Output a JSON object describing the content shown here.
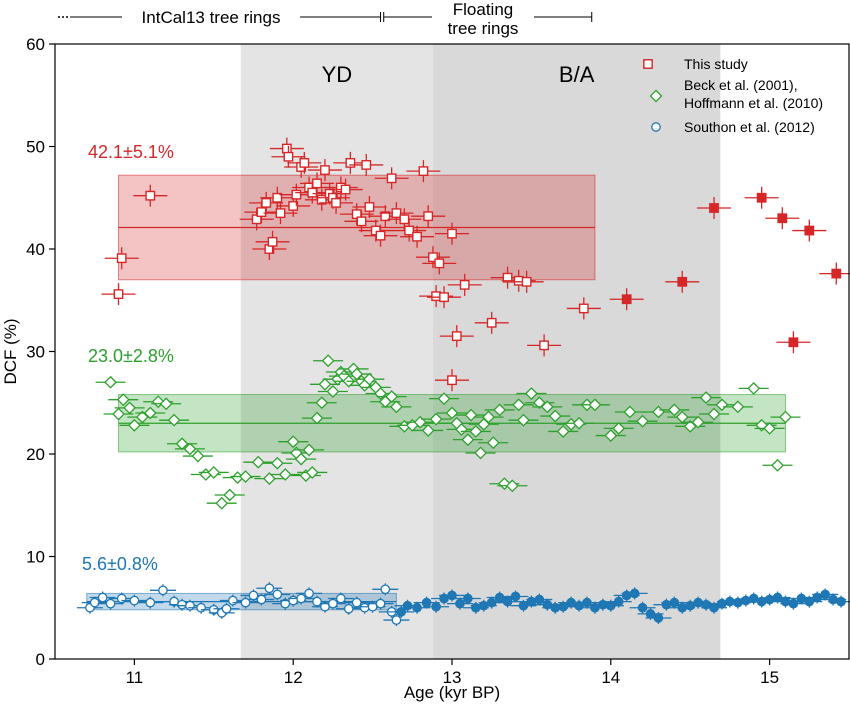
{
  "chart_data": {
    "type": "scatter",
    "xlabel": "Age (kyr BP)",
    "ylabel": "DCF (%)",
    "xlim": [
      10.5,
      15.5
    ],
    "ylim": [
      0,
      60
    ],
    "xticks": [
      11,
      12,
      13,
      14,
      15
    ],
    "yticks": [
      0,
      10,
      20,
      30,
      40,
      50,
      60
    ],
    "grid": false,
    "legend_position": "top-right",
    "shaded_regions": [
      {
        "label": "YD",
        "x": [
          11.67,
          12.88
        ],
        "color": "#e4e4e4"
      },
      {
        "label": "B/A",
        "x": [
          12.88,
          14.69
        ],
        "color": "#d9d9d9"
      }
    ],
    "timeline": [
      {
        "label": "IntCal13 tree rings",
        "x": [
          10.5,
          12.55
        ],
        "dotted_start": true
      },
      {
        "label_lines": [
          "Floating",
          "tree rings"
        ],
        "x": [
          12.57,
          13.88
        ]
      }
    ],
    "series": [
      {
        "name": "This study",
        "color": "#d62728",
        "marker": "square",
        "mean_label": "42.1±5.1%",
        "mean": 42.1,
        "band": [
          37.0,
          47.2
        ],
        "band_x": [
          10.9,
          13.9
        ],
        "open_points": [
          [
            10.9,
            35.6
          ],
          [
            10.92,
            39.1
          ],
          [
            11.1,
            45.2
          ],
          [
            11.77,
            42.9
          ],
          [
            11.8,
            43.6
          ],
          [
            11.83,
            44.5
          ],
          [
            11.85,
            40.0
          ],
          [
            11.87,
            40.7
          ],
          [
            11.9,
            45.0
          ],
          [
            11.92,
            43.5
          ],
          [
            11.96,
            49.8
          ],
          [
            11.97,
            49.0
          ],
          [
            12.0,
            44.2
          ],
          [
            12.02,
            45.3
          ],
          [
            12.05,
            48.0
          ],
          [
            12.07,
            48.4
          ],
          [
            12.1,
            46.0
          ],
          [
            12.12,
            45.5
          ],
          [
            12.15,
            46.4
          ],
          [
            12.18,
            44.8
          ],
          [
            12.2,
            47.7
          ],
          [
            12.23,
            45.4
          ],
          [
            12.25,
            45.0
          ],
          [
            12.27,
            44.5
          ],
          [
            12.3,
            46.0
          ],
          [
            12.33,
            45.8
          ],
          [
            12.36,
            48.4
          ],
          [
            12.4,
            43.4
          ],
          [
            12.43,
            42.7
          ],
          [
            12.46,
            48.2
          ],
          [
            12.48,
            44.1
          ],
          [
            12.52,
            41.8
          ],
          [
            12.55,
            41.3
          ],
          [
            12.58,
            43.2
          ],
          [
            12.62,
            46.9
          ],
          [
            12.65,
            43.5
          ],
          [
            12.7,
            42.9
          ],
          [
            12.73,
            41.8
          ],
          [
            12.78,
            41.2
          ],
          [
            12.82,
            47.6
          ],
          [
            12.85,
            43.2
          ],
          [
            12.88,
            39.2
          ],
          [
            12.9,
            35.4
          ],
          [
            12.92,
            38.6
          ],
          [
            12.95,
            35.3
          ],
          [
            13.0,
            27.2
          ],
          [
            13.0,
            41.5
          ],
          [
            13.03,
            31.5
          ],
          [
            13.08,
            36.5
          ],
          [
            13.25,
            32.8
          ],
          [
            13.35,
            37.2
          ],
          [
            13.42,
            36.9
          ],
          [
            13.47,
            36.8
          ],
          [
            13.58,
            30.6
          ],
          [
            13.83,
            34.2
          ]
        ],
        "filled_points": [
          [
            14.1,
            35.1
          ],
          [
            14.45,
            36.8
          ],
          [
            14.65,
            44.0
          ],
          [
            14.95,
            45.0
          ],
          [
            15.08,
            43.0
          ],
          [
            15.15,
            30.9
          ],
          [
            15.25,
            41.8
          ],
          [
            15.42,
            37.6
          ]
        ]
      },
      {
        "name_lines": [
          "Beck et al. (2001),",
          "Hoffmann et al. (2010)"
        ],
        "color": "#2ca02c",
        "marker": "diamond",
        "mean_label": "23.0±2.8%",
        "mean": 23.0,
        "band": [
          20.2,
          25.8
        ],
        "band_x": [
          10.9,
          15.1
        ],
        "open_points": [
          [
            10.85,
            27.0
          ],
          [
            10.9,
            23.9
          ],
          [
            10.93,
            25.3
          ],
          [
            10.97,
            24.5
          ],
          [
            11.0,
            22.8
          ],
          [
            11.05,
            23.6
          ],
          [
            11.1,
            24.0
          ],
          [
            11.15,
            25.1
          ],
          [
            11.2,
            24.9
          ],
          [
            11.25,
            23.3
          ],
          [
            11.3,
            21.0
          ],
          [
            11.35,
            20.5
          ],
          [
            11.4,
            19.8
          ],
          [
            11.45,
            18.0
          ],
          [
            11.5,
            18.2
          ],
          [
            11.55,
            15.2
          ],
          [
            11.6,
            16.0
          ],
          [
            11.65,
            17.7
          ],
          [
            11.7,
            17.8
          ],
          [
            11.78,
            19.2
          ],
          [
            11.85,
            17.6
          ],
          [
            11.9,
            19.1
          ],
          [
            11.95,
            18.0
          ],
          [
            12.0,
            21.2
          ],
          [
            12.02,
            20.1
          ],
          [
            12.05,
            19.5
          ],
          [
            12.08,
            17.9
          ],
          [
            12.1,
            20.4
          ],
          [
            12.12,
            18.2
          ],
          [
            12.15,
            23.5
          ],
          [
            12.18,
            25.0
          ],
          [
            12.2,
            26.8
          ],
          [
            12.22,
            29.1
          ],
          [
            12.25,
            26.1
          ],
          [
            12.28,
            27.3
          ],
          [
            12.3,
            28.0
          ],
          [
            12.32,
            27.6
          ],
          [
            12.35,
            27.1
          ],
          [
            12.38,
            28.3
          ],
          [
            12.4,
            27.8
          ],
          [
            12.43,
            27.1
          ],
          [
            12.45,
            26.7
          ],
          [
            12.48,
            27.3
          ],
          [
            12.52,
            26.5
          ],
          [
            12.55,
            25.9
          ],
          [
            12.58,
            25.1
          ],
          [
            12.62,
            25.6
          ],
          [
            12.65,
            24.6
          ],
          [
            12.7,
            22.7
          ],
          [
            12.75,
            22.8
          ],
          [
            12.8,
            23.1
          ],
          [
            12.85,
            22.3
          ],
          [
            12.9,
            23.4
          ],
          [
            12.95,
            25.4
          ],
          [
            13.0,
            24.0
          ],
          [
            13.03,
            23.0
          ],
          [
            13.06,
            22.4
          ],
          [
            13.1,
            21.4
          ],
          [
            13.12,
            23.8
          ],
          [
            13.15,
            22.2
          ],
          [
            13.18,
            20.1
          ],
          [
            13.2,
            22.9
          ],
          [
            13.23,
            23.6
          ],
          [
            13.26,
            21.1
          ],
          [
            13.3,
            24.3
          ],
          [
            13.33,
            17.1
          ],
          [
            13.38,
            16.9
          ],
          [
            13.42,
            24.8
          ],
          [
            13.45,
            23.3
          ],
          [
            13.5,
            25.9
          ],
          [
            13.55,
            25.0
          ],
          [
            13.6,
            24.6
          ],
          [
            13.65,
            23.7
          ],
          [
            13.7,
            22.2
          ],
          [
            13.75,
            22.9
          ],
          [
            13.8,
            23.0
          ],
          [
            13.85,
            24.8
          ],
          [
            13.9,
            24.8
          ],
          [
            14.0,
            21.8
          ],
          [
            14.05,
            22.5
          ],
          [
            14.12,
            24.1
          ],
          [
            14.2,
            23.2
          ],
          [
            14.3,
            24.1
          ],
          [
            14.4,
            24.3
          ],
          [
            14.45,
            23.6
          ],
          [
            14.5,
            22.7
          ],
          [
            14.55,
            23.1
          ],
          [
            14.6,
            25.5
          ],
          [
            14.65,
            23.9
          ],
          [
            14.7,
            24.8
          ],
          [
            14.8,
            24.6
          ],
          [
            14.9,
            26.4
          ],
          [
            14.95,
            22.8
          ],
          [
            15.0,
            22.5
          ],
          [
            15.05,
            18.9
          ],
          [
            15.1,
            23.6
          ]
        ],
        "filled_points": []
      },
      {
        "name": "Southon et al. (2012)",
        "color": "#1f77b4",
        "marker": "circle",
        "mean_label": "5.6±0.8%",
        "mean": 5.6,
        "band": [
          4.8,
          6.4
        ],
        "band_x": [
          10.7,
          12.65
        ],
        "open_points": [
          [
            10.72,
            5.0
          ],
          [
            10.75,
            5.5
          ],
          [
            10.8,
            6.0
          ],
          [
            10.85,
            5.4
          ],
          [
            10.92,
            5.9
          ],
          [
            11.0,
            5.7
          ],
          [
            11.1,
            5.5
          ],
          [
            11.18,
            6.7
          ],
          [
            11.25,
            5.6
          ],
          [
            11.3,
            5.3
          ],
          [
            11.35,
            5.2
          ],
          [
            11.42,
            5.0
          ],
          [
            11.5,
            4.8
          ],
          [
            11.55,
            4.5
          ],
          [
            11.58,
            4.9
          ],
          [
            11.62,
            5.7
          ],
          [
            11.7,
            5.5
          ],
          [
            11.75,
            6.2
          ],
          [
            11.8,
            5.8
          ],
          [
            11.85,
            6.9
          ],
          [
            11.9,
            6.3
          ],
          [
            11.95,
            5.4
          ],
          [
            12.0,
            5.7
          ],
          [
            12.05,
            5.9
          ],
          [
            12.1,
            6.4
          ],
          [
            12.15,
            5.6
          ],
          [
            12.2,
            5.1
          ],
          [
            12.25,
            5.4
          ],
          [
            12.3,
            5.9
          ],
          [
            12.35,
            4.9
          ],
          [
            12.4,
            5.5
          ],
          [
            12.45,
            5.0
          ],
          [
            12.5,
            5.1
          ],
          [
            12.55,
            5.4
          ],
          [
            12.58,
            6.8
          ],
          [
            12.62,
            4.6
          ],
          [
            12.65,
            3.8
          ]
        ],
        "filled_points": [
          [
            12.68,
            4.6
          ],
          [
            12.72,
            5.2
          ],
          [
            12.78,
            5.0
          ],
          [
            12.84,
            5.5
          ],
          [
            12.9,
            5.1
          ],
          [
            12.95,
            5.9
          ],
          [
            13.0,
            6.2
          ],
          [
            13.05,
            5.4
          ],
          [
            13.1,
            5.9
          ],
          [
            13.15,
            5.0
          ],
          [
            13.2,
            5.2
          ],
          [
            13.25,
            5.5
          ],
          [
            13.3,
            6.0
          ],
          [
            13.35,
            5.6
          ],
          [
            13.4,
            6.1
          ],
          [
            13.45,
            5.2
          ],
          [
            13.5,
            5.6
          ],
          [
            13.55,
            5.8
          ],
          [
            13.6,
            5.3
          ],
          [
            13.65,
            5.0
          ],
          [
            13.7,
            5.1
          ],
          [
            13.75,
            5.5
          ],
          [
            13.8,
            5.2
          ],
          [
            13.85,
            5.5
          ],
          [
            13.9,
            5.0
          ],
          [
            13.95,
            5.3
          ],
          [
            14.0,
            5.2
          ],
          [
            14.05,
            5.6
          ],
          [
            14.1,
            6.2
          ],
          [
            14.15,
            6.4
          ],
          [
            14.2,
            5.0
          ],
          [
            14.25,
            4.4
          ],
          [
            14.3,
            4.0
          ],
          [
            14.35,
            5.3
          ],
          [
            14.4,
            5.5
          ],
          [
            14.45,
            5.0
          ],
          [
            14.5,
            5.2
          ],
          [
            14.55,
            5.5
          ],
          [
            14.6,
            5.3
          ],
          [
            14.65,
            5.0
          ],
          [
            14.7,
            5.4
          ],
          [
            14.75,
            5.6
          ],
          [
            14.8,
            5.5
          ],
          [
            14.85,
            5.7
          ],
          [
            14.9,
            5.9
          ],
          [
            14.95,
            5.6
          ],
          [
            15.0,
            5.8
          ],
          [
            15.05,
            6.0
          ],
          [
            15.1,
            5.6
          ],
          [
            15.15,
            5.4
          ],
          [
            15.2,
            5.9
          ],
          [
            15.25,
            5.6
          ],
          [
            15.3,
            6.0
          ],
          [
            15.35,
            6.3
          ],
          [
            15.4,
            5.8
          ],
          [
            15.45,
            5.6
          ]
        ]
      }
    ]
  }
}
